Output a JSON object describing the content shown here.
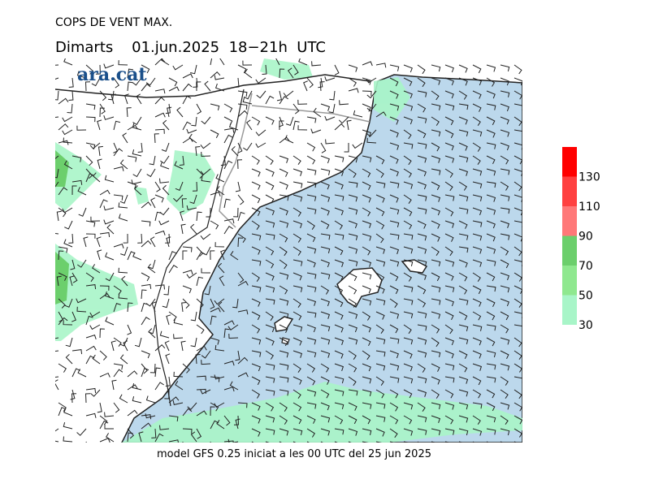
{
  "title": "COPS DE VENT MAX.",
  "subtitle": "Dimarts    01.jun.2025  18−21h  UTC",
  "logo": "ara.cat",
  "footer": "model GFS 0.25 iniciat a les 00 UTC del 25 jun 2025",
  "legend": {
    "levels": [
      30,
      50,
      70,
      90,
      110,
      130
    ],
    "colors": [
      "#a8f5c8",
      "#8fe88f",
      "#6ccf6c",
      "#ff7878",
      "#ff4040",
      "#ff0000"
    ]
  }
}
